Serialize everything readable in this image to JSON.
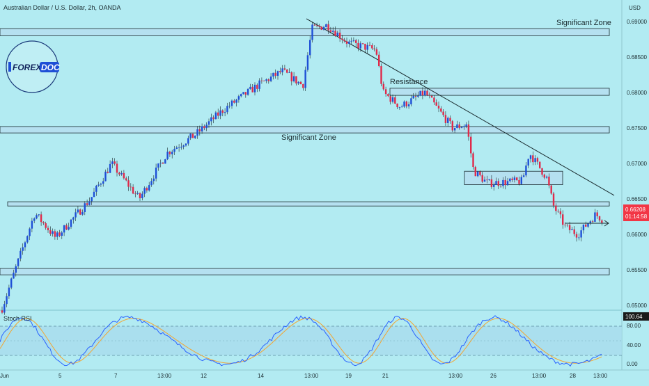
{
  "header": {
    "symbol_title": "Australian Dollar / U.S. Dollar, 2h, OANDA",
    "currency": "USD"
  },
  "logo": {
    "text_left": "FOREX",
    "text_right": "DOC"
  },
  "price_panel": {
    "current_price": "0.66208",
    "countdown": "01:14:58",
    "price_ticks": [
      "0.69000",
      "0.68500",
      "0.68000",
      "0.67500",
      "0.67000",
      "0.66500",
      "0.66000",
      "0.65500",
      "0.65000"
    ]
  },
  "annotations": {
    "zone_top_label": "Significant Zone",
    "zone_mid_label": "Significant Zone",
    "resistance_label": "Resistance"
  },
  "indicator": {
    "name": "Stoch RSI",
    "current_value": "100.64",
    "ticks": [
      "80.00",
      "40.00",
      "0.00"
    ]
  },
  "time_axis": {
    "labels": [
      "Jun",
      "5",
      "7",
      "13:00",
      "12",
      "14",
      "13:00",
      "19",
      "21",
      "13:00",
      "26",
      "13:00",
      "28",
      "13:00"
    ]
  },
  "colors": {
    "background": "#b2ebf2",
    "bull_candle": "#1e4fd6",
    "bear_candle": "#e0294a",
    "zone_fill": "#b6dcef",
    "stoch_k": "#2a62ff",
    "stoch_d": "#f4a530",
    "price_badge": "#f23645"
  },
  "chart_data": {
    "type": "candlestick",
    "title": "Australian Dollar / U.S. Dollar, 2h, OANDA",
    "ylabel": "USD",
    "ylim": [
      0.6465,
      0.692
    ],
    "last_price": 0.66208,
    "key_points": [
      {
        "t": 0,
        "p": 0.6487
      },
      {
        "t": 20,
        "p": 0.6545
      },
      {
        "t": 50,
        "p": 0.663
      },
      {
        "t": 80,
        "p": 0.6595
      },
      {
        "t": 130,
        "p": 0.665
      },
      {
        "t": 160,
        "p": 0.67
      },
      {
        "t": 200,
        "p": 0.665
      },
      {
        "t": 240,
        "p": 0.6715
      },
      {
        "t": 280,
        "p": 0.674
      },
      {
        "t": 320,
        "p": 0.6775
      },
      {
        "t": 370,
        "p": 0.681
      },
      {
        "t": 405,
        "p": 0.683
      },
      {
        "t": 435,
        "p": 0.681
      },
      {
        "t": 448,
        "p": 0.689
      },
      {
        "t": 470,
        "p": 0.6895
      },
      {
        "t": 500,
        "p": 0.687
      },
      {
        "t": 540,
        "p": 0.686
      },
      {
        "t": 550,
        "p": 0.68
      },
      {
        "t": 575,
        "p": 0.678
      },
      {
        "t": 610,
        "p": 0.68
      },
      {
        "t": 650,
        "p": 0.675
      },
      {
        "t": 670,
        "p": 0.6755
      },
      {
        "t": 680,
        "p": 0.669
      },
      {
        "t": 700,
        "p": 0.6672
      },
      {
        "t": 750,
        "p": 0.6675
      },
      {
        "t": 760,
        "p": 0.6715
      },
      {
        "t": 785,
        "p": 0.668
      },
      {
        "t": 795,
        "p": 0.664
      },
      {
        "t": 812,
        "p": 0.661
      },
      {
        "t": 830,
        "p": 0.66
      },
      {
        "t": 855,
        "p": 0.6628
      },
      {
        "t": 866,
        "p": 0.66208
      }
    ],
    "horizontal_zones": [
      {
        "label": "Significant Zone",
        "from": 0.688,
        "to": 0.689
      },
      {
        "label": "Resistance",
        "from": 0.6796,
        "to": 0.6806
      },
      {
        "label": "Significant Zone",
        "from": 0.6743,
        "to": 0.6752
      },
      {
        "label": "",
        "from": 0.667,
        "to": 0.6689
      },
      {
        "label": "",
        "from": 0.664,
        "to": 0.6646
      },
      {
        "label": "",
        "from": 0.6543,
        "to": 0.6552
      }
    ],
    "trendline": {
      "from": {
        "t": 440,
        "p": 0.6904
      },
      "to": {
        "t": 882,
        "p": 0.6655
      }
    },
    "stoch_rsi": {
      "range": [
        0,
        100
      ],
      "levels": [
        80,
        20
      ],
      "last_value": 100.64
    }
  }
}
